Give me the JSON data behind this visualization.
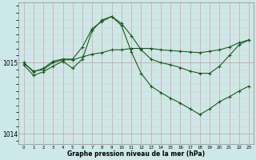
{
  "xlabel": "Graphe pression niveau de la mer (hPa)",
  "bg_color": "#cce8e8",
  "grid_color_major": "#d4a0a0",
  "grid_color_minor": "#e8cccc",
  "line_color": "#1a5c1a",
  "hours": [
    0,
    1,
    2,
    3,
    4,
    5,
    6,
    7,
    8,
    9,
    10,
    11,
    12,
    13,
    14,
    15,
    16,
    17,
    18,
    19,
    20,
    21,
    22,
    23
  ],
  "line_top": [
    1015.0,
    1014.87,
    1014.92,
    1015.02,
    1015.05,
    1015.05,
    1015.22,
    1015.48,
    1015.58,
    1015.65,
    1015.55,
    1015.38,
    1015.18,
    1015.05,
    1015.0,
    1014.97,
    1014.93,
    1014.88,
    1014.85,
    1014.85,
    1014.95,
    1015.1,
    1015.25,
    1015.32
  ],
  "line_mid": [
    1015.0,
    1014.88,
    1014.9,
    1015.0,
    1015.04,
    1015.04,
    1015.08,
    1015.12,
    1015.14,
    1015.18,
    1015.18,
    1015.2,
    1015.2,
    1015.2,
    1015.18,
    1015.17,
    1015.16,
    1015.15,
    1015.14,
    1015.16,
    1015.18,
    1015.22,
    1015.28,
    1015.32
  ],
  "line_bot": [
    1014.97,
    1014.82,
    1014.87,
    1014.95,
    1015.02,
    1014.92,
    1015.05,
    1015.45,
    1015.6,
    1015.65,
    1015.52,
    1015.15,
    1014.85,
    1014.67,
    1014.58,
    1014.5,
    1014.43,
    1014.35,
    1014.27,
    1014.35,
    1014.45,
    1014.52,
    1014.6,
    1014.67
  ],
  "ylim": [
    1013.85,
    1015.85
  ],
  "yticks": [
    1014,
    1015
  ],
  "ytick_labels": [
    "1014",
    "1015"
  ]
}
